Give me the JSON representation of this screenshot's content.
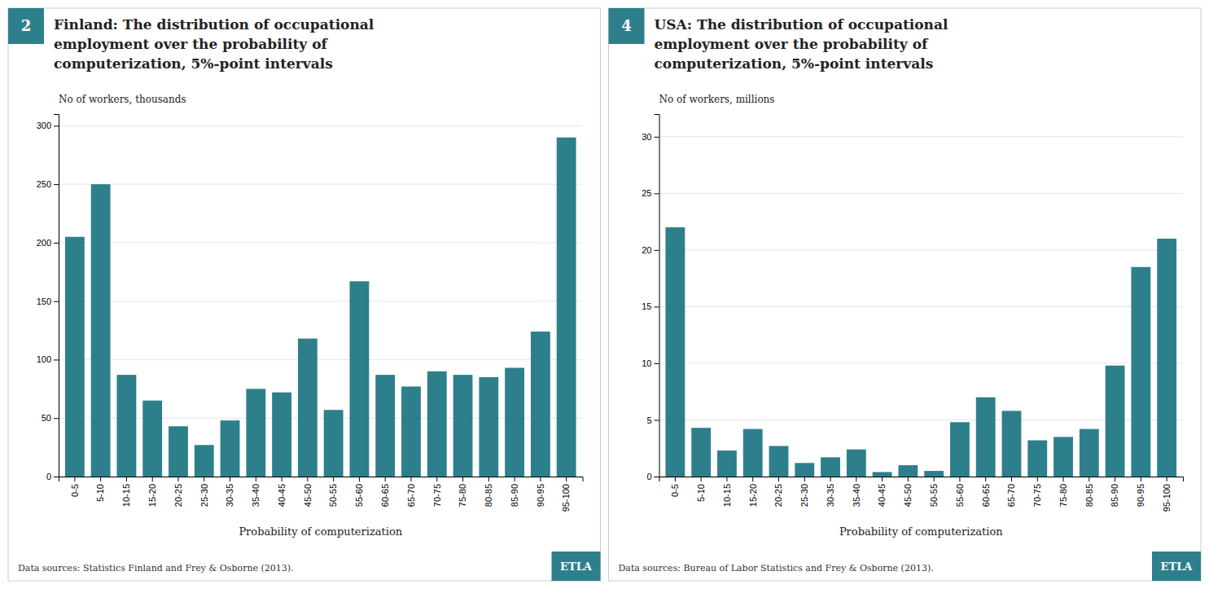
{
  "chart_data": [
    {
      "type": "bar",
      "title": [
        "Finland: The distribution of occupational",
        "employment over the probability of",
        "computerization, 5%-point intervals"
      ],
      "ylabel": "No of workers, thousands",
      "xlabel": "Probability of computerization",
      "annotations": [
        "2",
        "Data sources: Statistics Finland and Frey & Osborne (2013).",
        "ETLA"
      ],
      "categories": [
        "0-5",
        "5-10",
        "10-15",
        "15-20",
        "20-25",
        "25-30",
        "30-35",
        "35-40",
        "40-45",
        "45-50",
        "50-55",
        "55-60",
        "60-65",
        "65-70",
        "70-75",
        "75-80",
        "80-85",
        "85-90",
        "90-95",
        "95-100"
      ],
      "values": [
        205,
        250,
        87,
        65,
        43,
        27,
        48,
        75,
        72,
        118,
        57,
        167,
        87,
        77,
        90,
        87,
        85,
        93,
        124,
        290
      ],
      "color": "#2e7f8c",
      "ylim": [
        0,
        310
      ],
      "yticks": [
        0,
        50,
        100,
        150,
        200,
        250,
        300
      ],
      "grid": true
    },
    {
      "type": "bar",
      "title": [
        "USA: The distribution of occupational",
        "employment over the probability of",
        "computerization, 5%-point intervals"
      ],
      "ylabel": "No of workers, millions",
      "xlabel": "Probability of computerization",
      "annotations": [
        "4",
        "Data sources: Bureau of Labor Statistics and Frey & Osborne (2013).",
        "ETLA"
      ],
      "categories": [
        "0-5",
        "5-10",
        "10-15",
        "15-20",
        "20-25",
        "25-30",
        "30-35",
        "35-40",
        "40-45",
        "45-50",
        "50-55",
        "55-60",
        "60-65",
        "65-70",
        "70-75",
        "75-80",
        "80-85",
        "85-90",
        "90-95",
        "95-100"
      ],
      "values": [
        22,
        4.3,
        2.3,
        4.2,
        2.7,
        1.2,
        1.7,
        2.4,
        0.4,
        1.0,
        0.5,
        4.8,
        7.0,
        5.8,
        3.2,
        3.5,
        4.2,
        9.8,
        18.5,
        21.0
      ],
      "color": "#2e7f8c",
      "ylim": [
        0,
        32
      ],
      "yticks": [
        0,
        5,
        10,
        15,
        20,
        25,
        30
      ],
      "grid": true
    }
  ]
}
